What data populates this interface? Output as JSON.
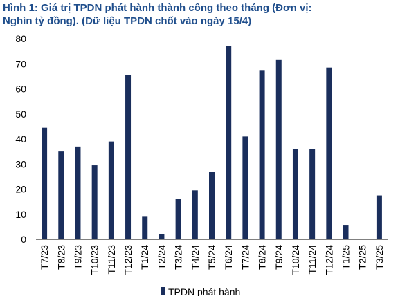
{
  "chart_data": {
    "type": "bar",
    "title_lines": [
      "Hình 1: Giá trị TPDN phát hành thành công theo tháng (Đơn vị:",
      "Nghìn tỷ đồng). (Dữ liệu TPDN chốt vào ngày 15/4)"
    ],
    "categories": [
      "T7/23",
      "T8/23",
      "T9/23",
      "T10/23",
      "T11/23",
      "T12/23",
      "T1/24",
      "T2/24",
      "T3/24",
      "T4/24",
      "T5/24",
      "T6/24",
      "T7/24",
      "T8/24",
      "T9/24",
      "T10/24",
      "T11/24",
      "T12/24",
      "T1/25",
      "T2/25",
      "T3/25"
    ],
    "series": [
      {
        "name": "TPDN phát hành",
        "values": [
          44.5,
          35,
          37,
          29.5,
          39,
          65.5,
          9,
          2,
          16,
          19.5,
          27,
          77,
          41,
          67.5,
          71.5,
          36,
          36,
          68.5,
          5.5,
          0,
          17.5
        ]
      }
    ],
    "ylim": [
      0,
      80
    ],
    "yticks": [
      0,
      10,
      20,
      30,
      40,
      50,
      60,
      70,
      80
    ],
    "grid": false,
    "legend": "bottom",
    "bar_color": "#1a2e5c"
  }
}
